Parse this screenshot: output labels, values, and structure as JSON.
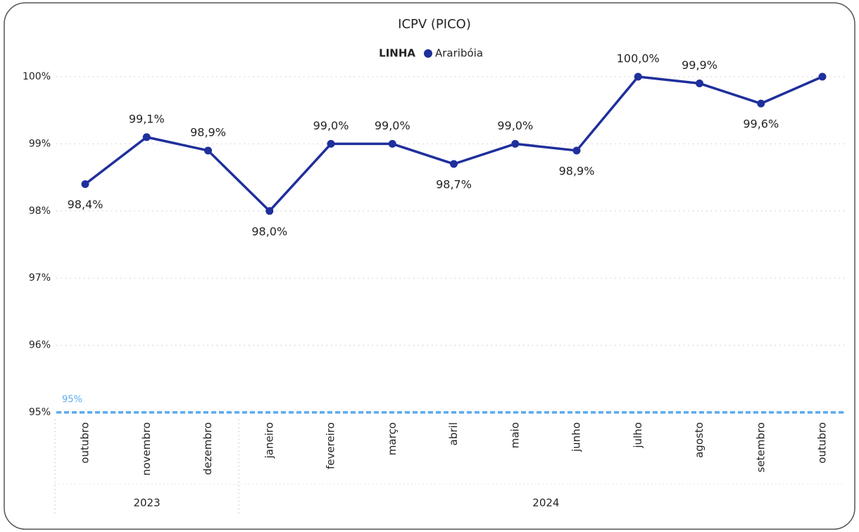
{
  "chart_data": {
    "type": "line",
    "title": "ICPV (PICO)",
    "legend_title": "LINHA",
    "categories": [
      "outubro",
      "novembro",
      "dezembro",
      "janeiro",
      "fevereiro",
      "março",
      "abril",
      "maio",
      "junho",
      "julho",
      "agosto",
      "setembro",
      "outubro"
    ],
    "groups": [
      {
        "label": "2023",
        "span": 3
      },
      {
        "label": "2024",
        "span": 10
      }
    ],
    "series": [
      {
        "name": "Araribóia",
        "color": "#1f2f9c",
        "values": [
          98.4,
          99.1,
          98.9,
          98.0,
          99.0,
          99.0,
          98.7,
          99.0,
          98.9,
          100.0,
          99.9,
          99.6,
          100.0
        ],
        "value_labels": [
          "98,4%",
          "99,1%",
          "98,9%",
          "98,0%",
          "99,0%",
          "99,0%",
          "98,7%",
          "99,0%",
          "98,9%",
          "100,0%",
          "99,9%",
          "99,6%",
          null
        ]
      }
    ],
    "ylim": [
      95,
      100
    ],
    "yticks": [
      {
        "value": 95,
        "label": "95%"
      },
      {
        "value": 96,
        "label": "96%"
      },
      {
        "value": 97,
        "label": "97%"
      },
      {
        "value": 98,
        "label": "98%"
      },
      {
        "value": 99,
        "label": "99%"
      },
      {
        "value": 100,
        "label": "100%"
      }
    ],
    "grid": true,
    "reference_lines": [
      {
        "value": 95,
        "label": "95%",
        "color": "#5aaaf0"
      }
    ]
  }
}
